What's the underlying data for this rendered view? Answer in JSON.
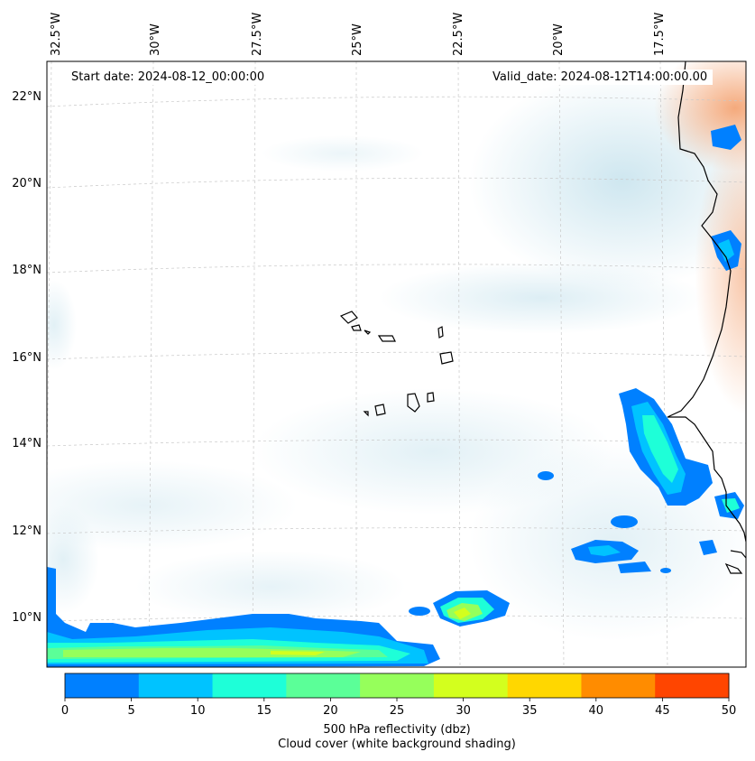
{
  "map": {
    "start_date": "Start date: 2024-08-12_00:00:00",
    "valid_date": "Valid_date: 2024-08-12T14:00:00.00",
    "lon_labels": [
      "32.5°W",
      "30°W",
      "27.5°W",
      "25°W",
      "22.5°W",
      "20°W",
      "17.5°W"
    ],
    "lat_labels": [
      "22°N",
      "20°N",
      "18°N",
      "16°N",
      "14°N",
      "12°N",
      "10°N"
    ]
  },
  "colorbar": {
    "ticks": [
      "0",
      "5",
      "10",
      "15",
      "20",
      "25",
      "30",
      "35",
      "40",
      "45",
      "50"
    ],
    "colors": [
      "#0080ff",
      "#00c3ff",
      "#1effd8",
      "#5bff98",
      "#96ff5b",
      "#d3ff1e",
      "#ffd700",
      "#ff8c00",
      "#ff4500"
    ],
    "label_line1": "500 hPa reflectivity (dbz)",
    "label_line2": "Cloud cover (white background shading)"
  }
}
